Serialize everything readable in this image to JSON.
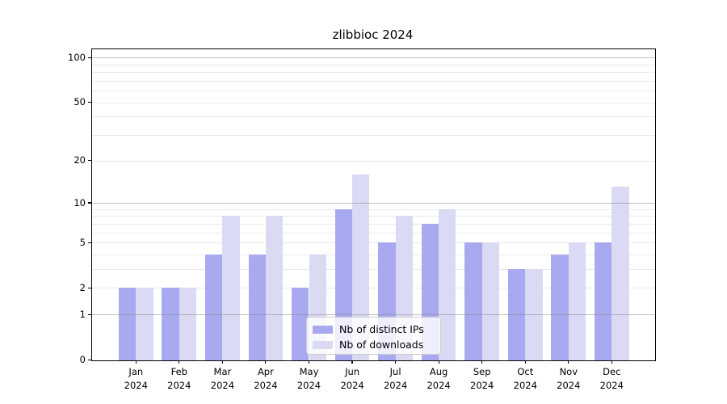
{
  "title": "zlibbioc 2024",
  "chart_data": {
    "type": "bar",
    "title": "zlibbioc 2024",
    "categories": [
      "Jan 2024",
      "Feb 2024",
      "Mar 2024",
      "Apr 2024",
      "May 2024",
      "Jun 2024",
      "Jul 2024",
      "Aug 2024",
      "Sep 2024",
      "Oct 2024",
      "Nov 2024",
      "Dec 2024"
    ],
    "month_labels": [
      "Jan",
      "Feb",
      "Mar",
      "Apr",
      "May",
      "Jun",
      "Jul",
      "Aug",
      "Sep",
      "Oct",
      "Nov",
      "Dec"
    ],
    "year_label": "2024",
    "series": [
      {
        "name": "Nb of distinct IPs",
        "color": "#a9a9f0",
        "values": [
          2,
          2,
          4,
          4,
          2,
          9,
          5,
          7,
          5,
          3,
          4,
          5
        ]
      },
      {
        "name": "Nb of downloads",
        "color": "#dadaf5",
        "values": [
          2,
          2,
          8,
          8,
          4,
          16,
          8,
          9,
          5,
          3,
          5,
          13
        ]
      }
    ],
    "y_axis": {
      "scale": "log10(1+x)",
      "tick_values": [
        0,
        1,
        2,
        5,
        10,
        20,
        50,
        100
      ],
      "major_grid_values": [
        1,
        10,
        100
      ],
      "minor_grid_values": [
        2,
        3,
        4,
        5,
        6,
        7,
        8,
        9,
        20,
        30,
        40,
        50,
        60,
        70,
        80,
        90
      ],
      "ylim": [
        0,
        113
      ]
    },
    "xlabel": "",
    "ylabel": "",
    "grid": "on",
    "legend_position": "lower center",
    "colors": {
      "major_grid": "rgba(128,128,128,0.5)",
      "minor_grid": "rgba(0,0,0,0.085)",
      "spine": "#000000",
      "text": "#000000",
      "background": "#ffffff"
    }
  }
}
